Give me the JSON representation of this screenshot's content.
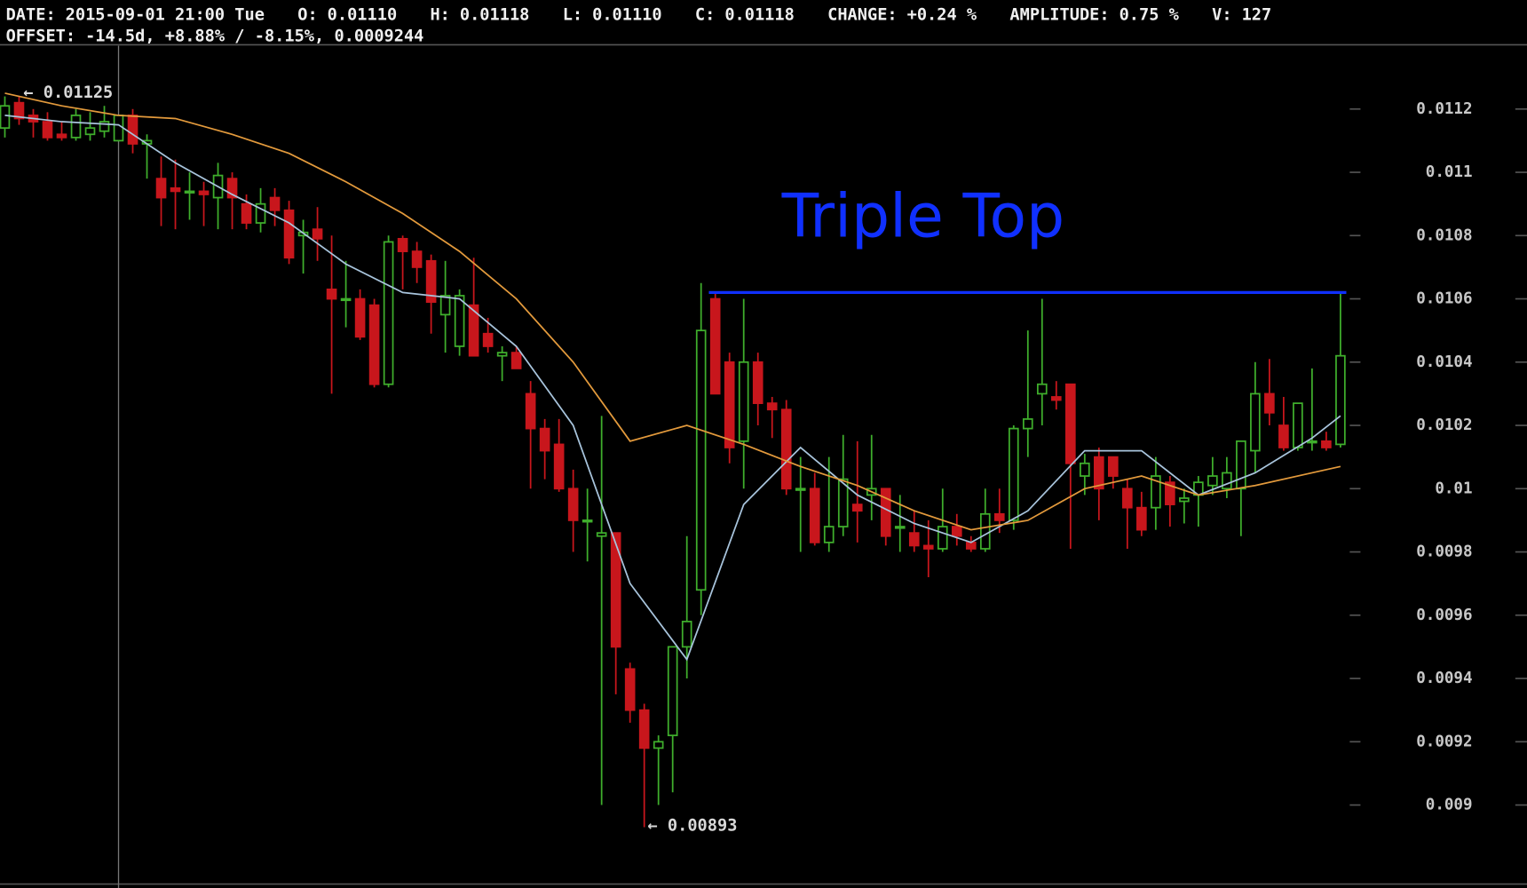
{
  "chart_data": {
    "type": "candlestick",
    "header": [
      [
        {
          "label": "DATE:",
          "text": "2015-09-01 21:00 Tue"
        },
        {
          "label": "O:",
          "text": "0.01110"
        },
        {
          "label": "H:",
          "text": "0.01118"
        },
        {
          "label": "L:",
          "text": "0.01110"
        },
        {
          "label": "C:",
          "text": "0.01118"
        },
        {
          "label": "CHANGE:",
          "text": "+0.24 %"
        },
        {
          "label": "AMPLITUDE:",
          "text": "0.75 %"
        },
        {
          "label": "V:",
          "text": "127"
        }
      ],
      [
        {
          "label": "OFFSET:",
          "text": "-14.5d, +8.88% / -8.15%, 0.0009244"
        }
      ]
    ],
    "open": [
      0.01114,
      0.01122,
      0.01118,
      0.01116,
      0.01112,
      0.01111,
      0.01112,
      0.01113,
      0.0111,
      0.01118,
      0.01109,
      0.01098,
      0.01095,
      0.01094,
      0.01094,
      0.01092,
      0.01098,
      0.0109,
      0.01084,
      0.01092,
      0.01088,
      0.0108,
      0.01082,
      0.01063,
      0.0106,
      0.0106,
      0.01058,
      0.01033,
      0.01079,
      0.01075,
      0.01072,
      0.01055,
      0.01045,
      0.01058,
      0.01049,
      0.01042,
      0.01043,
      0.0103,
      0.01019,
      0.01014,
      0.01,
      0.0099,
      0.00985,
      0.00986,
      0.00943,
      0.0093,
      0.00918,
      0.00922,
      0.0095,
      0.00968,
      0.0106,
      0.0104,
      0.01015,
      0.0104,
      0.01027,
      0.01025,
      0.01,
      0.01,
      0.00983,
      0.00988,
      0.00995,
      0.00998,
      0.01,
      0.00988,
      0.00986,
      0.00982,
      0.00981,
      0.00988,
      0.00983,
      0.00981,
      0.00992,
      0.0099,
      0.01019,
      0.0103,
      0.01029,
      0.01033,
      0.01004,
      0.0101,
      0.0101,
      0.01,
      0.00994,
      0.00994,
      0.01002,
      0.00996,
      0.00998,
      0.01001,
      0.01,
      0.01,
      0.01012,
      0.0103,
      0.0102,
      0.01013,
      0.01015,
      0.01015,
      0.01014
    ],
    "high": [
      0.01124,
      0.01124,
      0.0112,
      0.01119,
      0.01116,
      0.0112,
      0.01119,
      0.01121,
      0.01118,
      0.0112,
      0.01112,
      0.01105,
      0.01104,
      0.011,
      0.01097,
      0.01103,
      0.011,
      0.01093,
      0.01095,
      0.01095,
      0.01091,
      0.01085,
      0.01089,
      0.0108,
      0.01072,
      0.01063,
      0.0106,
      0.0108,
      0.0108,
      0.01078,
      0.01074,
      0.01072,
      0.01063,
      0.01073,
      0.01054,
      0.01045,
      0.01045,
      0.01034,
      0.01022,
      0.01022,
      0.01006,
      0.01,
      0.01023,
      0.00986,
      0.00945,
      0.00932,
      0.00922,
      0.0095,
      0.00985,
      0.01065,
      0.01062,
      0.01043,
      0.0106,
      0.01043,
      0.01029,
      0.01028,
      0.0101,
      0.01005,
      0.0101,
      0.01017,
      0.01015,
      0.01017,
      0.01,
      0.00998,
      0.00993,
      0.0099,
      0.01,
      0.00992,
      0.00985,
      0.01,
      0.01,
      0.0102,
      0.0105,
      0.0106,
      0.01034,
      0.01033,
      0.01011,
      0.01013,
      0.0101,
      0.01003,
      0.00999,
      0.0101,
      0.01004,
      0.01,
      0.01004,
      0.0101,
      0.0101,
      0.01015,
      0.0104,
      0.01041,
      0.01029,
      0.01027,
      0.01038,
      0.01018,
      0.01062
    ],
    "low": [
      0.01111,
      0.01115,
      0.01111,
      0.0111,
      0.0111,
      0.0111,
      0.0111,
      0.01111,
      0.0111,
      0.01106,
      0.01098,
      0.01083,
      0.01082,
      0.01085,
      0.01083,
      0.01082,
      0.01082,
      0.01082,
      0.01081,
      0.01083,
      0.01071,
      0.01068,
      0.01072,
      0.0103,
      0.01051,
      0.01047,
      0.01032,
      0.01032,
      0.01063,
      0.01065,
      0.01049,
      0.01043,
      0.01042,
      0.01042,
      0.01043,
      0.01034,
      0.01038,
      0.01,
      0.01003,
      0.00999,
      0.0098,
      0.00977,
      0.009,
      0.00935,
      0.00926,
      0.00893,
      0.009,
      0.00904,
      0.0094,
      0.0096,
      0.0103,
      0.01008,
      0.01,
      0.0102,
      0.01016,
      0.00998,
      0.0098,
      0.00982,
      0.0098,
      0.00985,
      0.00983,
      0.0099,
      0.00982,
      0.0098,
      0.0098,
      0.00972,
      0.0098,
      0.00982,
      0.0098,
      0.0098,
      0.00986,
      0.00987,
      0.0101,
      0.0102,
      0.01025,
      0.00981,
      0.00998,
      0.0099,
      0.01,
      0.00981,
      0.00985,
      0.00987,
      0.00988,
      0.00989,
      0.00988,
      0.00998,
      0.00997,
      0.00985,
      0.01005,
      0.0102,
      0.01012,
      0.01012,
      0.01012,
      0.01012,
      0.01013
    ],
    "close": [
      0.01121,
      0.01117,
      0.01116,
      0.01111,
      0.01111,
      0.01118,
      0.01114,
      0.01116,
      0.01118,
      0.01109,
      0.0111,
      0.01092,
      0.01094,
      0.01094,
      0.01093,
      0.01099,
      0.01092,
      0.01084,
      0.0109,
      0.01088,
      0.01073,
      0.01081,
      0.01079,
      0.0106,
      0.0106,
      0.01048,
      0.01033,
      0.01078,
      0.01075,
      0.0107,
      0.01059,
      0.01061,
      0.01061,
      0.01042,
      0.01045,
      0.01043,
      0.01038,
      0.01019,
      0.01012,
      0.01,
      0.0099,
      0.0099,
      0.00986,
      0.0095,
      0.0093,
      0.00918,
      0.0092,
      0.0095,
      0.00958,
      0.0105,
      0.0103,
      0.01013,
      0.0104,
      0.01027,
      0.01025,
      0.01,
      0.01,
      0.00983,
      0.00988,
      0.01003,
      0.00993,
      0.01,
      0.00985,
      0.00988,
      0.00982,
      0.00981,
      0.00988,
      0.00985,
      0.00981,
      0.00992,
      0.0099,
      0.01019,
      0.01022,
      0.01033,
      0.01028,
      0.01008,
      0.01008,
      0.01,
      0.01004,
      0.00994,
      0.00987,
      0.01004,
      0.00995,
      0.00997,
      0.01002,
      0.01004,
      0.01005,
      0.01015,
      0.0103,
      0.01024,
      0.01013,
      0.01027,
      0.01015,
      0.01013,
      0.01042
    ],
    "up_color": "#3fae2c",
    "down_color": "#c8161c",
    "lines": [
      {
        "color": "#a8c4dc",
        "x": [
          0,
          4,
          8,
          12,
          16,
          20,
          24,
          28,
          32,
          36,
          40,
          44,
          48,
          52,
          56,
          60,
          64,
          68,
          72,
          76,
          80,
          84,
          88,
          92,
          94
        ],
        "values": [
          0.01118,
          0.01116,
          0.01115,
          0.01103,
          0.01093,
          0.01084,
          0.01071,
          0.01062,
          0.0106,
          0.01045,
          0.0102,
          0.0097,
          0.00946,
          0.00995,
          0.01013,
          0.00998,
          0.00989,
          0.00983,
          0.00993,
          0.01012,
          0.01012,
          0.00998,
          0.01005,
          0.01016,
          0.01023
        ]
      },
      {
        "color": "#e39a3c",
        "x": [
          0,
          4,
          8,
          12,
          16,
          20,
          24,
          28,
          32,
          36,
          40,
          44,
          48,
          52,
          56,
          60,
          64,
          68,
          72,
          76,
          80,
          84,
          88,
          92,
          94
        ],
        "values": [
          0.01125,
          0.01121,
          0.01118,
          0.01117,
          0.01112,
          0.01106,
          0.01097,
          0.01087,
          0.01075,
          0.0106,
          0.0104,
          0.01015,
          0.0102,
          0.01014,
          0.01007,
          0.01001,
          0.00993,
          0.00987,
          0.0099,
          0.01,
          0.01004,
          0.00998,
          0.01001,
          0.01005,
          0.01007
        ]
      }
    ],
    "ylim": [
      0.00875,
      0.0114
    ],
    "yticks": [
      0.009,
      0.0092,
      0.0094,
      0.0096,
      0.0098,
      0.01,
      0.0102,
      0.0104,
      0.0106,
      0.0108,
      0.011,
      0.0112
    ],
    "max_label": 0.01125,
    "min_label": 0.00893,
    "crosshair_index": 8,
    "pattern": {
      "title": "Triple Top",
      "level": 0.01062,
      "x": [
        49,
        94
      ],
      "color": "#1030ff"
    }
  }
}
